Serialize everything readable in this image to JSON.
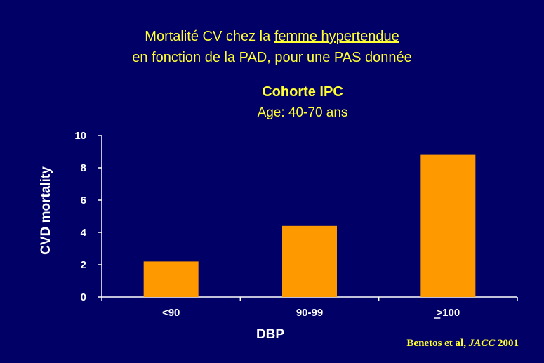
{
  "title": {
    "line1_before": "Mortalité CV chez la ",
    "line1_underlined": "femme hypertendue",
    "line2": "en fonction de la PAD, pour une PAS donnée"
  },
  "subtitle": {
    "line1": "Cohorte IPC",
    "line2": "Age: 40-70 ans"
  },
  "credit": {
    "authors": "Benetos et al, ",
    "journal": "JACC",
    "year": " 2001"
  },
  "colors": {
    "background": "#000066",
    "title": "#ffff33",
    "bar": "#ff9900",
    "axis": "#ffffff"
  },
  "chart_data": {
    "type": "bar",
    "categories": [
      "<90",
      "90-99",
      "≥100"
    ],
    "category_labels_plain": [
      "<90",
      "90-99",
      ">100"
    ],
    "values": [
      2.2,
      4.4,
      8.8
    ],
    "xlabel": "DBP",
    "ylabel": "CVD mortality",
    "ylim": [
      0,
      10
    ],
    "yticks": [
      0,
      2,
      4,
      6,
      8,
      10
    ],
    "grid": false,
    "legend": "none"
  }
}
